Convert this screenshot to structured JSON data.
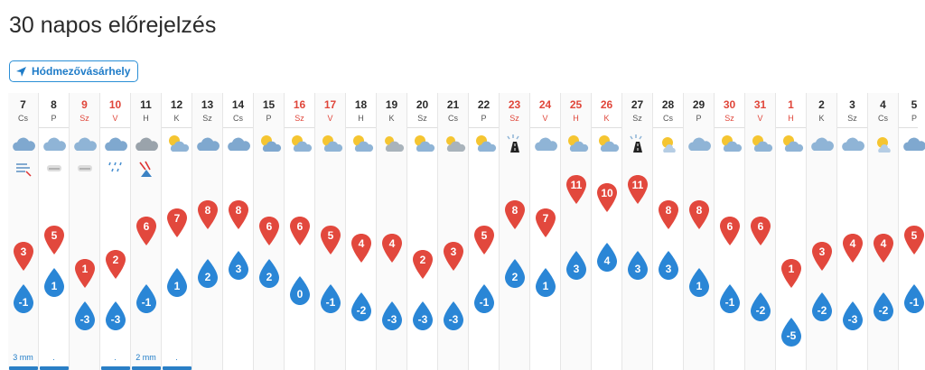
{
  "page": {
    "title": "30 napos előrejelzés"
  },
  "location": {
    "label": "Hódmezővásárhely",
    "icon": "location-arrow-icon"
  },
  "colors": {
    "max_temp": "#e2483d",
    "min_temp": "#2a86d6",
    "accent": "#2b8fd6",
    "weekend": "#e0463a"
  },
  "days": [
    {
      "date": "7",
      "day": "Cs",
      "weekend": false,
      "icon": "rain-cloud-icon",
      "extra": "wind-icon",
      "max": 3,
      "min": -1,
      "precip": "3 mm",
      "bar": true
    },
    {
      "date": "8",
      "day": "P",
      "weekend": false,
      "icon": "cloud-icon",
      "extra": "fog-icon",
      "max": 5,
      "min": 1,
      "precip": ".",
      "bar": true
    },
    {
      "date": "9",
      "day": "Sz",
      "weekend": true,
      "icon": "cloud-icon",
      "extra": "fog-icon",
      "max": 1,
      "min": -3,
      "precip": "",
      "bar": false
    },
    {
      "date": "10",
      "day": "V",
      "weekend": true,
      "icon": "rain-cloud-icon",
      "extra": "rain-drops-icon",
      "max": 2,
      "min": -3,
      "precip": ".",
      "bar": true
    },
    {
      "date": "11",
      "day": "H",
      "weekend": false,
      "icon": "dark-cloud-icon",
      "extra": "wind-warning-icon",
      "max": 6,
      "min": -1,
      "precip": "2 mm",
      "bar": true
    },
    {
      "date": "12",
      "day": "K",
      "weekend": false,
      "icon": "partly-cloudy-icon",
      "extra": "",
      "max": 7,
      "min": 1,
      "precip": ".",
      "bar": true
    },
    {
      "date": "13",
      "day": "Sz",
      "weekend": false,
      "icon": "rain-cloud-icon",
      "extra": "",
      "max": 8,
      "min": 2,
      "precip": "",
      "bar": false
    },
    {
      "date": "14",
      "day": "Cs",
      "weekend": false,
      "icon": "rain-cloud-icon",
      "extra": "",
      "max": 8,
      "min": 3,
      "precip": "",
      "bar": false
    },
    {
      "date": "15",
      "day": "P",
      "weekend": false,
      "icon": "sun-rain-cloud-icon",
      "extra": "",
      "max": 6,
      "min": 2,
      "precip": "",
      "bar": false
    },
    {
      "date": "16",
      "day": "Sz",
      "weekend": true,
      "icon": "partly-cloudy-icon",
      "extra": "",
      "max": 6,
      "min": 0,
      "precip": "",
      "bar": false
    },
    {
      "date": "17",
      "day": "V",
      "weekend": true,
      "icon": "partly-cloudy-icon",
      "extra": "",
      "max": 5,
      "min": -1,
      "precip": "",
      "bar": false
    },
    {
      "date": "18",
      "day": "H",
      "weekend": false,
      "icon": "partly-cloudy-icon",
      "extra": "",
      "max": 4,
      "min": -2,
      "precip": "",
      "bar": false
    },
    {
      "date": "19",
      "day": "K",
      "weekend": false,
      "icon": "cloud-snow-icon",
      "extra": "",
      "max": 4,
      "min": -3,
      "precip": "",
      "bar": false
    },
    {
      "date": "20",
      "day": "Sz",
      "weekend": false,
      "icon": "partly-cloudy-icon",
      "extra": "",
      "max": 2,
      "min": -3,
      "precip": "",
      "bar": false
    },
    {
      "date": "21",
      "day": "Cs",
      "weekend": false,
      "icon": "cloud-snow-icon",
      "extra": "",
      "max": 3,
      "min": -3,
      "precip": "",
      "bar": false
    },
    {
      "date": "22",
      "day": "P",
      "weekend": false,
      "icon": "partly-cloudy-icon",
      "extra": "",
      "max": 5,
      "min": -1,
      "precip": "",
      "bar": false
    },
    {
      "date": "23",
      "day": "Sz",
      "weekend": true,
      "icon": "slippery-road-icon",
      "extra": "",
      "max": 8,
      "min": 2,
      "precip": "",
      "bar": false
    },
    {
      "date": "24",
      "day": "V",
      "weekend": true,
      "icon": "cloud-icon",
      "extra": "",
      "max": 7,
      "min": 1,
      "precip": "",
      "bar": false
    },
    {
      "date": "25",
      "day": "H",
      "weekend": true,
      "icon": "partly-cloudy-icon",
      "extra": "",
      "max": 11,
      "min": 3,
      "precip": "",
      "bar": false
    },
    {
      "date": "26",
      "day": "K",
      "weekend": true,
      "icon": "partly-cloudy-icon",
      "extra": "",
      "max": 10,
      "min": 4,
      "precip": "",
      "bar": false
    },
    {
      "date": "27",
      "day": "Sz",
      "weekend": false,
      "icon": "slippery-road-icon",
      "extra": "",
      "max": 11,
      "min": 3,
      "precip": "",
      "bar": false
    },
    {
      "date": "28",
      "day": "Cs",
      "weekend": false,
      "icon": "sun-cloud-icon",
      "extra": "",
      "max": 8,
      "min": 3,
      "precip": "",
      "bar": false
    },
    {
      "date": "29",
      "day": "P",
      "weekend": false,
      "icon": "cloud-icon",
      "extra": "",
      "max": 8,
      "min": 1,
      "precip": "",
      "bar": false
    },
    {
      "date": "30",
      "day": "Sz",
      "weekend": true,
      "icon": "partly-cloudy-icon",
      "extra": "",
      "max": 6,
      "min": -1,
      "precip": "",
      "bar": false
    },
    {
      "date": "31",
      "day": "V",
      "weekend": true,
      "icon": "partly-cloudy-icon",
      "extra": "",
      "max": 6,
      "min": -2,
      "precip": "",
      "bar": false
    },
    {
      "date": "1",
      "day": "H",
      "weekend": true,
      "icon": "partly-cloudy-icon",
      "extra": "",
      "max": 1,
      "min": -5,
      "precip": "",
      "bar": false
    },
    {
      "date": "2",
      "day": "K",
      "weekend": false,
      "icon": "cloud-icon",
      "extra": "",
      "max": 3,
      "min": -2,
      "precip": "",
      "bar": false
    },
    {
      "date": "3",
      "day": "Sz",
      "weekend": false,
      "icon": "cloud-icon",
      "extra": "",
      "max": 4,
      "min": -3,
      "precip": "",
      "bar": false
    },
    {
      "date": "4",
      "day": "Cs",
      "weekend": false,
      "icon": "sun-cloud-icon",
      "extra": "",
      "max": 4,
      "min": -2,
      "precip": "",
      "bar": false
    },
    {
      "date": "5",
      "day": "P",
      "weekend": false,
      "icon": "rain-cloud-icon",
      "extra": "",
      "max": 5,
      "min": -1,
      "precip": "",
      "bar": false
    }
  ]
}
